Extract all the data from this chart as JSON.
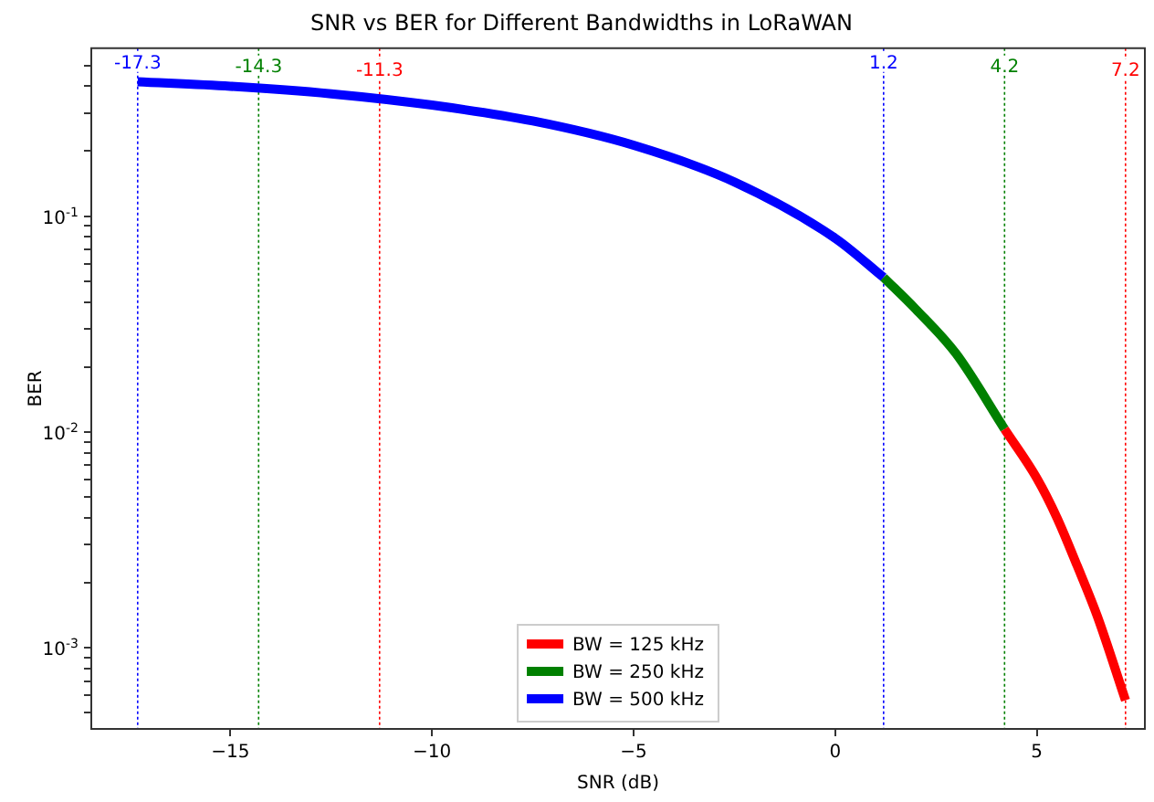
{
  "chart_data": {
    "type": "line",
    "title": "SNR vs BER for Different Bandwidths in LoRaWAN",
    "xlabel": "SNR (dB)",
    "ylabel": "BER",
    "log": "y",
    "legend": "bottom",
    "grid": false,
    "marker": "none",
    "line_style": "solid",
    "xlim": [
      -18.45,
      7.68
    ],
    "xticks": [
      {
        "value": -15,
        "label": "−15"
      },
      {
        "value": -10,
        "label": "−10"
      },
      {
        "value": -5,
        "label": "−5"
      },
      0,
      5
    ],
    "ylim": [
      0.00042,
      0.6
    ],
    "yticks": [
      {
        "value": 0.0005,
        "label": null
      },
      {
        "value": 0.0006,
        "label": null
      },
      {
        "value": 0.0007,
        "label": null
      },
      {
        "value": 0.0008,
        "label": null
      },
      {
        "value": 0.0009,
        "label": null
      },
      {
        "value": 0.001,
        "label": "10$^{-3}$"
      },
      {
        "value": 0.002,
        "label": null
      },
      {
        "value": 0.003,
        "label": null
      },
      {
        "value": 0.004,
        "label": null
      },
      {
        "value": 0.005,
        "label": null
      },
      {
        "value": 0.006,
        "label": null
      },
      {
        "value": 0.007,
        "label": null
      },
      {
        "value": 0.008,
        "label": null
      },
      {
        "value": 0.009,
        "label": null
      },
      {
        "value": 0.01,
        "label": "10$^{-2}$"
      },
      {
        "value": 0.02,
        "label": null
      },
      {
        "value": 0.03,
        "label": null
      },
      {
        "value": 0.04,
        "label": null
      },
      {
        "value": 0.05,
        "label": null
      },
      {
        "value": 0.06,
        "label": null
      },
      {
        "value": 0.07,
        "label": null
      },
      {
        "value": 0.08,
        "label": null
      },
      {
        "value": 0.09,
        "label": null
      },
      {
        "value": 0.1,
        "label": "10$^{-1}$"
      },
      {
        "value": 0.2,
        "label": null
      },
      {
        "value": 0.3,
        "label": null
      },
      {
        "value": 0.4,
        "label": null
      },
      {
        "value": 0.5,
        "label": null
      }
    ],
    "series": [
      {
        "name": "BW = 125 kHz",
        "color": "#ff0000",
        "x": [
          4.2,
          5,
          5.5,
          6,
          6.5,
          7.2
        ],
        "values": [
          0.0103,
          0.0061,
          0.004,
          0.0024,
          0.0014,
          0.00057
        ]
      },
      {
        "name": "BW = 250 kHz",
        "color": "#008000",
        "x": [
          1.2,
          2,
          3,
          4.2
        ],
        "values": [
          0.052,
          0.037,
          0.023,
          0.0103
        ]
      },
      {
        "name": "BW = 500 kHz",
        "color": "#0000ff",
        "x": [
          -17.3,
          -15,
          -12.5,
          -10,
          -7.5,
          -5,
          -2.5,
          0,
          1.2
        ],
        "values": [
          0.42,
          0.4,
          0.369,
          0.327,
          0.276,
          0.213,
          0.144,
          0.079,
          0.052
        ]
      }
    ],
    "ref_lines": [
      {
        "axis": "x",
        "value": -17.3,
        "label": "-17.3",
        "color": "#0000ff",
        "line_style": "dotted"
      },
      {
        "axis": "x",
        "value": -14.3,
        "label": "-14.3",
        "color": "#008000",
        "line_style": "dotted"
      },
      {
        "axis": "x",
        "value": -11.3,
        "label": "-11.3",
        "color": "#ff0000",
        "line_style": "dotted"
      },
      {
        "axis": "x",
        "value": 1.2,
        "label": "1.2",
        "color": "#0000ff",
        "line_style": "dotted"
      },
      {
        "axis": "x",
        "value": 4.2,
        "label": "4.2",
        "color": "#008000",
        "line_style": "dotted"
      },
      {
        "axis": "x",
        "value": 7.2,
        "label": "7.2",
        "color": "#ff0000",
        "line_style": "dotted"
      }
    ]
  }
}
